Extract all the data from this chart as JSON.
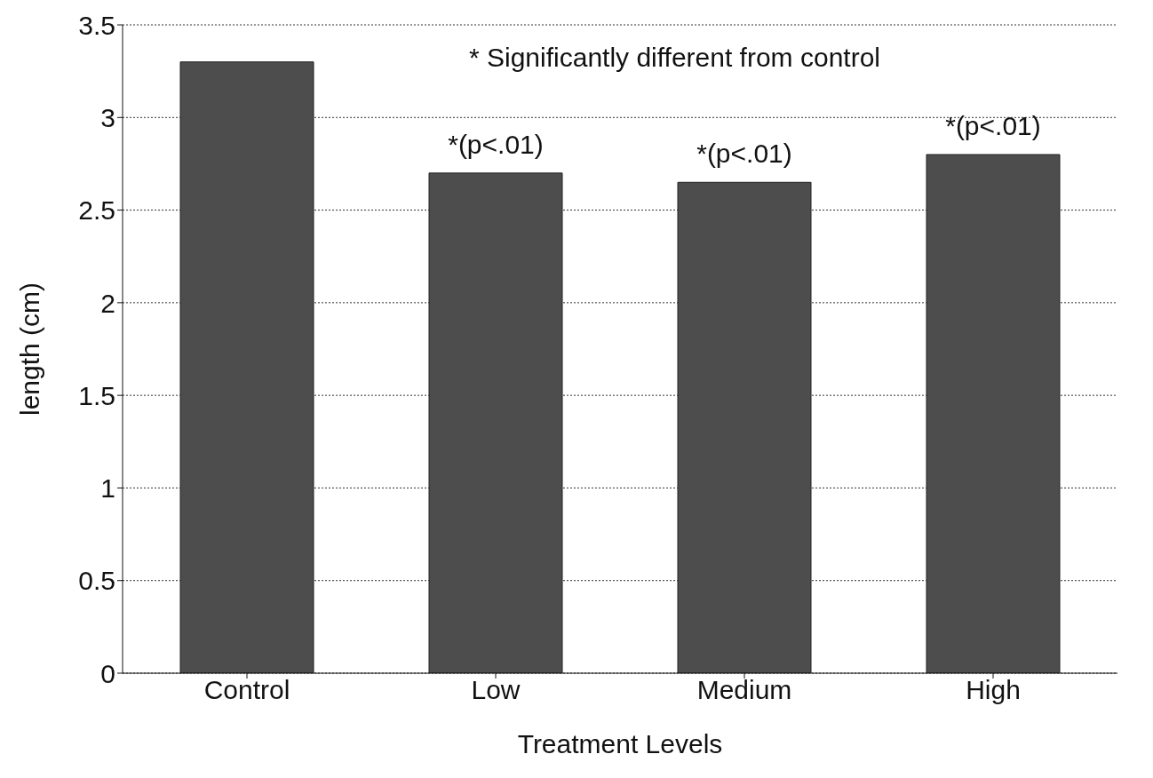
{
  "chart_data": {
    "type": "bar",
    "xlabel": "Treatment Levels",
    "ylabel": "length (cm)",
    "categories": [
      "Control",
      "Low",
      "Medium",
      "High"
    ],
    "values": [
      3.3,
      2.7,
      2.65,
      2.8
    ],
    "color": "#4d4d4d",
    "ylim": [
      0,
      3.5
    ],
    "yticks": [
      0,
      0.5,
      1,
      1.5,
      2,
      2.5,
      3,
      3.5
    ],
    "grid": "y",
    "annotations": [
      "* Significantly different from control",
      {
        "text": "*(p<.01)",
        "x": "Low",
        "y": 2.7
      },
      {
        "text": "*(p<.01)",
        "x": "Medium",
        "y": 2.65
      },
      {
        "text": "*(p<.01)",
        "x": "High",
        "y": 2.8
      }
    ]
  }
}
